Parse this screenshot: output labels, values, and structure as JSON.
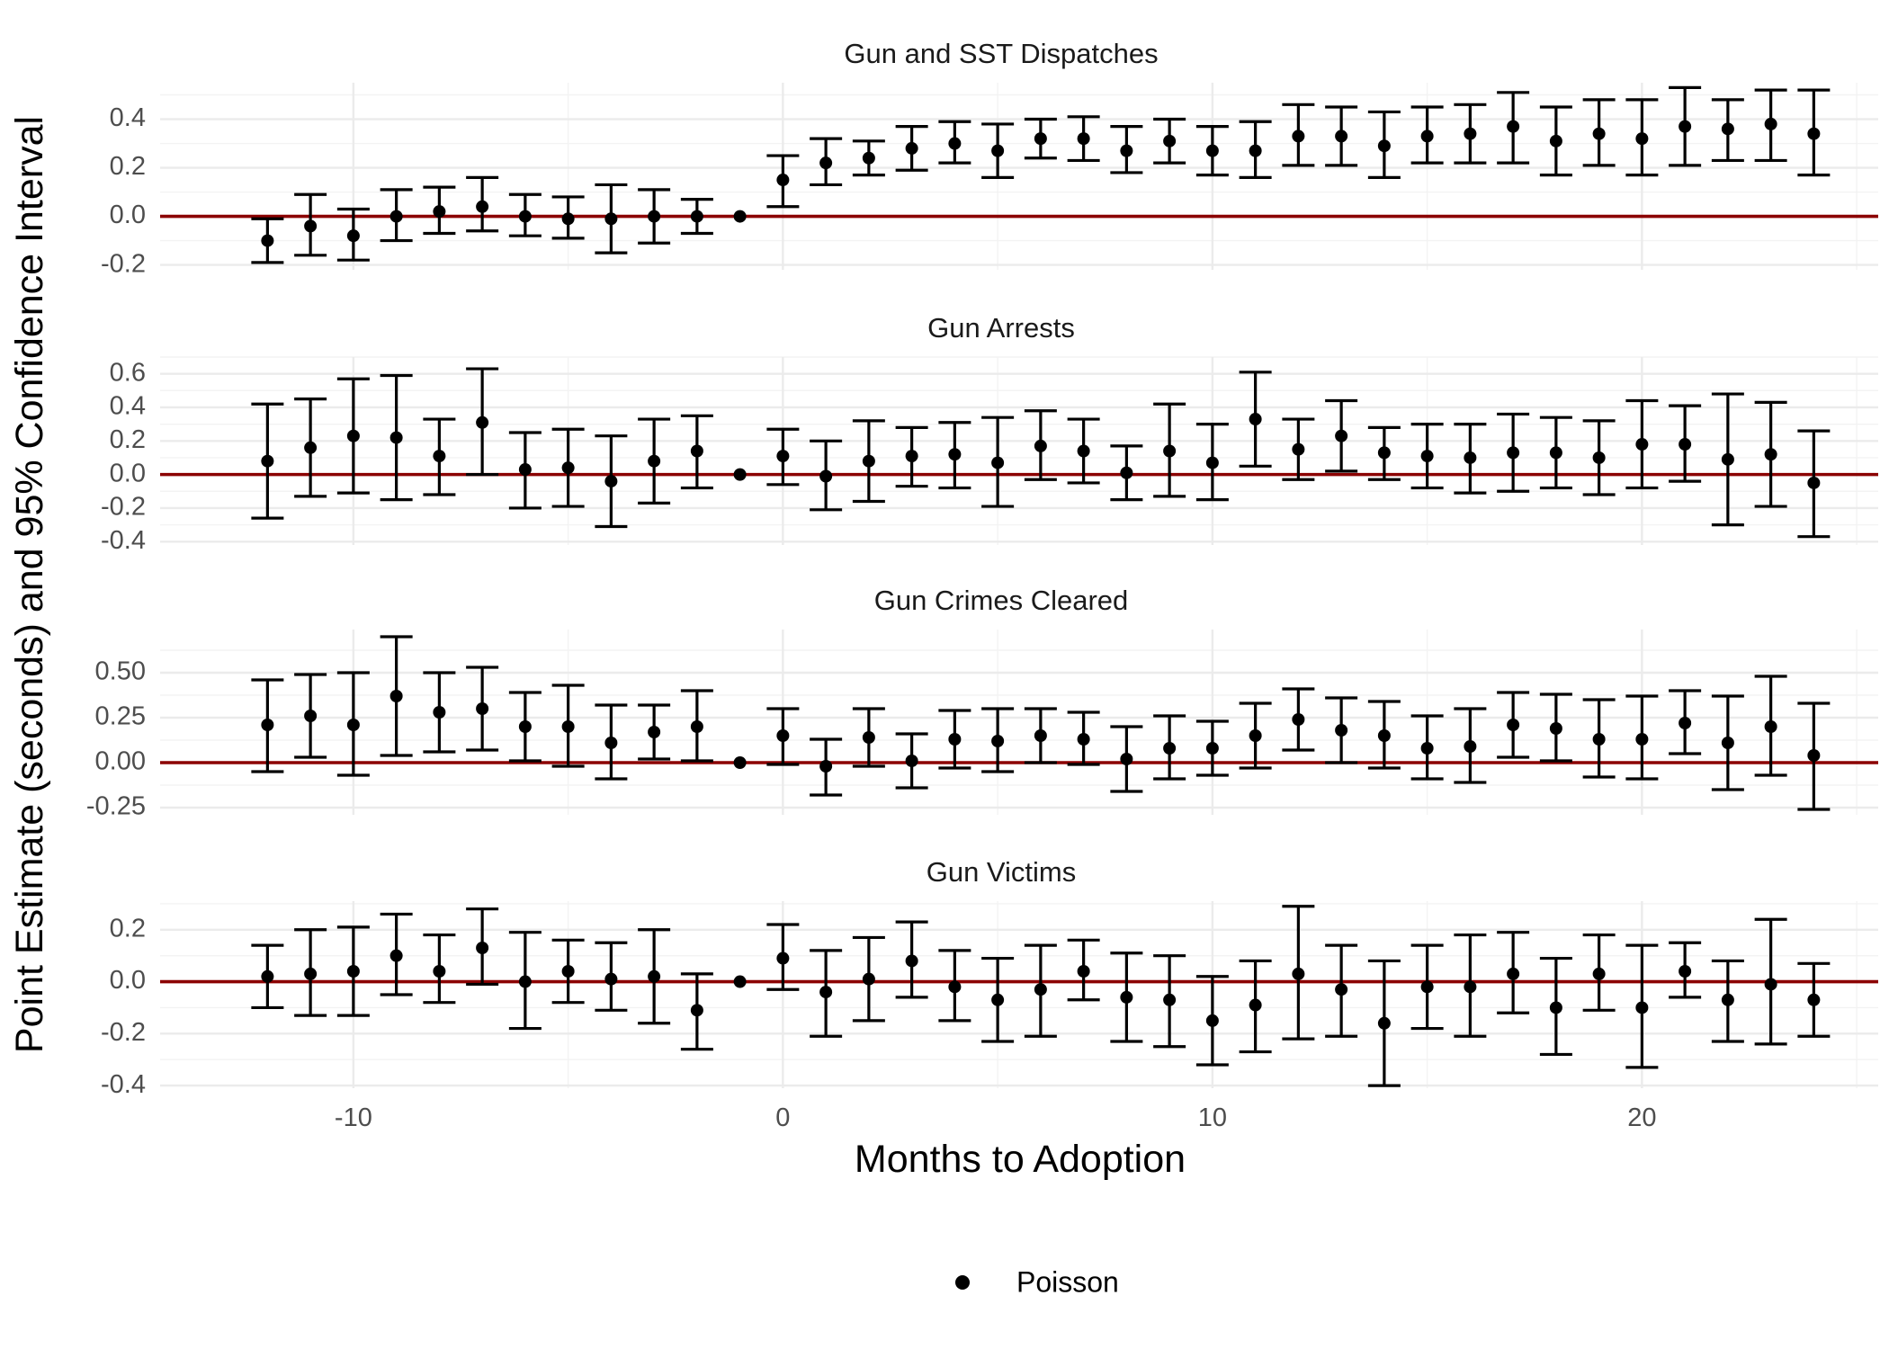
{
  "chart_data": {
    "type": "scatter",
    "subtype": "point-with-errorbars",
    "xlabel": "Months to Adoption",
    "ylabel": "Point Estimate (seconds) and 95% Confidence Interval",
    "x_ticks": [
      -10,
      0,
      10,
      20
    ],
    "xlim": [
      -14.5,
      25.5
    ],
    "legend": {
      "position": "bottom",
      "entries": [
        {
          "name": "Poisson",
          "symbol": "circle",
          "color": "#000000"
        }
      ]
    },
    "reference_line": {
      "y": 0,
      "color": "#8b0000"
    },
    "grid": true,
    "x": [
      -12,
      -11,
      -10,
      -9,
      -8,
      -7,
      -6,
      -5,
      -4,
      -3,
      -2,
      -1,
      0,
      1,
      2,
      3,
      4,
      5,
      6,
      7,
      8,
      9,
      10,
      11,
      12,
      13,
      14,
      15,
      16,
      17,
      18,
      19,
      20,
      21,
      22,
      23,
      24
    ],
    "panels": [
      {
        "title": "Gun and SST Dispatches",
        "ylim": [
          -0.22,
          0.55
        ],
        "y_ticks": [
          -0.2,
          0.0,
          0.2,
          0.4
        ],
        "y_tick_labels": [
          "-0.2",
          "0.0",
          "0.2",
          "0.4"
        ],
        "estimate": [
          -0.1,
          -0.04,
          -0.08,
          0.0,
          0.02,
          0.04,
          0.0,
          -0.01,
          -0.01,
          0.0,
          0.0,
          0.0,
          0.15,
          0.22,
          0.24,
          0.28,
          0.3,
          0.27,
          0.32,
          0.32,
          0.27,
          0.31,
          0.27,
          0.27,
          0.33,
          0.33,
          0.29,
          0.33,
          0.34,
          0.37,
          0.31,
          0.34,
          0.32,
          0.37,
          0.36,
          0.38,
          0.34
        ],
        "lower": [
          -0.19,
          -0.16,
          -0.18,
          -0.1,
          -0.07,
          -0.06,
          -0.08,
          -0.09,
          -0.15,
          -0.11,
          -0.07,
          0.0,
          0.04,
          0.13,
          0.17,
          0.19,
          0.22,
          0.16,
          0.24,
          0.23,
          0.18,
          0.22,
          0.17,
          0.16,
          0.21,
          0.21,
          0.16,
          0.22,
          0.22,
          0.22,
          0.17,
          0.21,
          0.17,
          0.21,
          0.23,
          0.23,
          0.17
        ],
        "upper": [
          -0.01,
          0.09,
          0.03,
          0.11,
          0.12,
          0.16,
          0.09,
          0.08,
          0.13,
          0.11,
          0.07,
          0.0,
          0.25,
          0.32,
          0.31,
          0.37,
          0.39,
          0.38,
          0.4,
          0.41,
          0.37,
          0.4,
          0.37,
          0.39,
          0.46,
          0.45,
          0.43,
          0.45,
          0.46,
          0.51,
          0.45,
          0.48,
          0.48,
          0.53,
          0.48,
          0.52,
          0.52
        ]
      },
      {
        "title": "Gun Arrests",
        "ylim": [
          -0.42,
          0.7
        ],
        "y_ticks": [
          -0.4,
          -0.2,
          0.0,
          0.2,
          0.4,
          0.6
        ],
        "y_tick_labels": [
          "-0.4",
          "-0.2",
          "0.0",
          "0.2",
          "0.4",
          "0.6"
        ],
        "estimate": [
          0.08,
          0.16,
          0.23,
          0.22,
          0.11,
          0.31,
          0.03,
          0.04,
          -0.04,
          0.08,
          0.14,
          0.0,
          0.11,
          -0.01,
          0.08,
          0.11,
          0.12,
          0.07,
          0.17,
          0.14,
          0.01,
          0.14,
          0.07,
          0.33,
          0.15,
          0.23,
          0.13,
          0.11,
          0.1,
          0.13,
          0.13,
          0.1,
          0.18,
          0.18,
          0.09,
          0.12,
          -0.05
        ],
        "lower": [
          -0.26,
          -0.13,
          -0.11,
          -0.15,
          -0.12,
          0.0,
          -0.2,
          -0.19,
          -0.31,
          -0.17,
          -0.08,
          0.0,
          -0.06,
          -0.21,
          -0.16,
          -0.07,
          -0.08,
          -0.19,
          -0.03,
          -0.05,
          -0.15,
          -0.13,
          -0.15,
          0.05,
          -0.03,
          0.02,
          -0.03,
          -0.08,
          -0.11,
          -0.1,
          -0.08,
          -0.12,
          -0.08,
          -0.04,
          -0.3,
          -0.19,
          -0.37
        ],
        "upper": [
          0.42,
          0.45,
          0.57,
          0.59,
          0.33,
          0.63,
          0.25,
          0.27,
          0.23,
          0.33,
          0.35,
          0.0,
          0.27,
          0.2,
          0.32,
          0.28,
          0.31,
          0.34,
          0.38,
          0.33,
          0.17,
          0.42,
          0.3,
          0.61,
          0.33,
          0.44,
          0.28,
          0.3,
          0.3,
          0.36,
          0.34,
          0.32,
          0.44,
          0.41,
          0.48,
          0.43,
          0.26
        ]
      },
      {
        "title": "Gun Crimes Cleared",
        "ylim": [
          -0.29,
          0.74
        ],
        "y_ticks": [
          -0.25,
          0.0,
          0.25,
          0.5
        ],
        "y_tick_labels": [
          "-0.25",
          "0.00",
          "0.25",
          "0.50"
        ],
        "estimate": [
          0.21,
          0.26,
          0.21,
          0.37,
          0.28,
          0.3,
          0.2,
          0.2,
          0.11,
          0.17,
          0.2,
          0.0,
          0.15,
          -0.02,
          0.14,
          0.01,
          0.13,
          0.12,
          0.15,
          0.13,
          0.02,
          0.08,
          0.08,
          0.15,
          0.24,
          0.18,
          0.15,
          0.08,
          0.09,
          0.21,
          0.19,
          0.13,
          0.13,
          0.22,
          0.11,
          0.2,
          0.04
        ],
        "lower": [
          -0.05,
          0.03,
          -0.07,
          0.04,
          0.06,
          0.07,
          0.01,
          -0.02,
          -0.09,
          0.02,
          0.01,
          0.0,
          -0.01,
          -0.18,
          -0.02,
          -0.14,
          -0.03,
          -0.05,
          0.0,
          -0.01,
          -0.16,
          -0.09,
          -0.07,
          -0.03,
          0.07,
          0.0,
          -0.03,
          -0.09,
          -0.11,
          0.03,
          0.01,
          -0.08,
          -0.09,
          0.05,
          -0.15,
          -0.07,
          -0.26
        ],
        "upper": [
          0.46,
          0.49,
          0.5,
          0.7,
          0.5,
          0.53,
          0.39,
          0.43,
          0.32,
          0.32,
          0.4,
          0.0,
          0.3,
          0.13,
          0.3,
          0.16,
          0.29,
          0.3,
          0.3,
          0.28,
          0.2,
          0.26,
          0.23,
          0.33,
          0.41,
          0.36,
          0.34,
          0.26,
          0.3,
          0.39,
          0.38,
          0.35,
          0.37,
          0.4,
          0.37,
          0.48,
          0.33
        ]
      },
      {
        "title": "Gun Victims",
        "ylim": [
          -0.41,
          0.31
        ],
        "y_ticks": [
          -0.4,
          -0.2,
          0.0,
          0.2
        ],
        "y_tick_labels": [
          "-0.4",
          "-0.2",
          "0.0",
          "0.2"
        ],
        "estimate": [
          0.02,
          0.03,
          0.04,
          0.1,
          0.04,
          0.13,
          0.0,
          0.04,
          0.01,
          0.02,
          -0.11,
          0.0,
          0.09,
          -0.04,
          0.01,
          0.08,
          -0.02,
          -0.07,
          -0.03,
          0.04,
          -0.06,
          -0.07,
          -0.15,
          -0.09,
          0.03,
          -0.03,
          -0.16,
          -0.02,
          -0.02,
          0.03,
          -0.1,
          0.03,
          -0.1,
          0.04,
          -0.07,
          -0.01,
          -0.07
        ],
        "lower": [
          -0.1,
          -0.13,
          -0.13,
          -0.05,
          -0.08,
          -0.01,
          -0.18,
          -0.08,
          -0.11,
          -0.16,
          -0.26,
          0.0,
          -0.03,
          -0.21,
          -0.15,
          -0.06,
          -0.15,
          -0.23,
          -0.21,
          -0.07,
          -0.23,
          -0.25,
          -0.32,
          -0.27,
          -0.22,
          -0.21,
          -0.4,
          -0.18,
          -0.21,
          -0.12,
          -0.28,
          -0.11,
          -0.33,
          -0.06,
          -0.23,
          -0.24,
          -0.21
        ],
        "upper": [
          0.14,
          0.2,
          0.21,
          0.26,
          0.18,
          0.28,
          0.19,
          0.16,
          0.15,
          0.2,
          0.03,
          0.0,
          0.22,
          0.12,
          0.17,
          0.23,
          0.12,
          0.09,
          0.14,
          0.16,
          0.11,
          0.1,
          0.02,
          0.08,
          0.29,
          0.14,
          0.08,
          0.14,
          0.18,
          0.19,
          0.09,
          0.18,
          0.14,
          0.15,
          0.08,
          0.24,
          0.07
        ]
      }
    ]
  }
}
